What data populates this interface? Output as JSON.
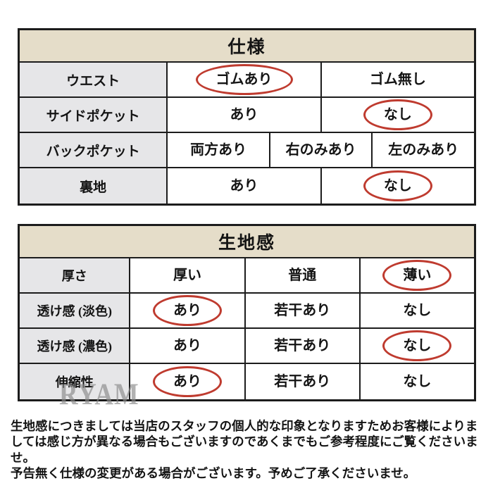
{
  "colors": {
    "background": "#ffffff",
    "header_bg": "#e5ddc9",
    "label_bg": "#e6e6e8",
    "border": "#1c1c1c",
    "circle": "#bf3b2f",
    "text": "#141414",
    "watermark": "#8a8a8a"
  },
  "tables": [
    {
      "title": "仕様",
      "rows": [
        {
          "label": "ウエスト",
          "options": [
            "ゴムあり",
            "ゴム無し"
          ],
          "circled": 0
        },
        {
          "label": "サイドポケット",
          "options": [
            "あり",
            "なし"
          ],
          "circled": 1
        },
        {
          "label": "バックポケット",
          "options": [
            "両方あり",
            "右のみあり",
            "左のみあり"
          ],
          "circled": -1
        },
        {
          "label": "裏地",
          "options": [
            "あり",
            "なし"
          ],
          "circled": 1
        }
      ]
    },
    {
      "title": "生地感",
      "rows": [
        {
          "label": "厚さ",
          "options": [
            "厚い",
            "普通",
            "薄い"
          ],
          "circled": 2
        },
        {
          "label": "透け感 (淡色)",
          "options": [
            "あり",
            "若干あり",
            "なし"
          ],
          "circled": 0
        },
        {
          "label": "透け感 (濃色)",
          "options": [
            "あり",
            "若干あり",
            "なし"
          ],
          "circled": 2
        },
        {
          "label": "伸縮性",
          "options": [
            "あり",
            "若干あり",
            "なし"
          ],
          "circled": 0
        }
      ]
    }
  ],
  "watermark": {
    "text": "RYAM"
  },
  "footer": {
    "note1": "生地感につきましては当店のスタッフの個人的な印象となりますためお客様によりましては感じ方が異なる場合もございますのであくまでもご参考程度にご覧くださいませ。",
    "note2": "予告無く仕様の変更がある場合がございます。予めご了承くださいませ。"
  }
}
